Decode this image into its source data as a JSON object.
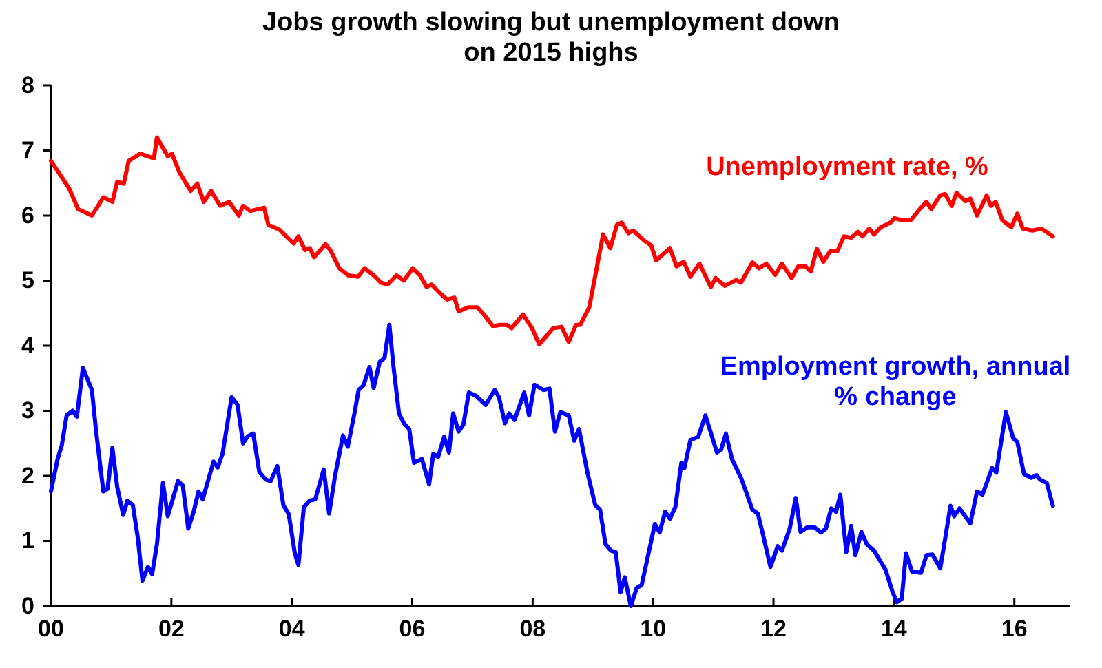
{
  "chart_data": {
    "type": "line",
    "title": "Jobs growth slowing but unemployment down on 2015 highs",
    "xlim": [
      2000,
      2016.93
    ],
    "xticks": [
      {
        "value": 2000,
        "label": "00"
      },
      {
        "value": 2002,
        "label": "02"
      },
      {
        "value": 2004,
        "label": "04"
      },
      {
        "value": 2006,
        "label": "06"
      },
      {
        "value": 2008,
        "label": "08"
      },
      {
        "value": 2010,
        "label": "10"
      },
      {
        "value": 2012,
        "label": "12"
      },
      {
        "value": 2014,
        "label": "14"
      },
      {
        "value": 2016,
        "label": "16"
      }
    ],
    "ylim": [
      0,
      8
    ],
    "yticks": [
      0,
      1,
      2,
      3,
      4,
      5,
      6,
      7,
      8
    ],
    "grid": false,
    "legend": false,
    "marker": "none",
    "line_style": "solid",
    "series": [
      {
        "name": "Unemployment rate, %",
        "color": "#ff0000",
        "x": [
          2000.0,
          2000.3,
          2000.45,
          2000.68,
          2000.87,
          2001.02,
          2001.1,
          2001.21,
          2001.29,
          2001.48,
          2001.71,
          2001.76,
          2001.94,
          2002.01,
          2002.13,
          2002.32,
          2002.43,
          2002.54,
          2002.66,
          2002.81,
          2002.96,
          2003.12,
          2003.19,
          2003.31,
          2003.54,
          2003.61,
          2003.8,
          2004.03,
          2004.11,
          2004.22,
          2004.3,
          2004.37,
          2004.56,
          2004.64,
          2004.79,
          2004.94,
          2005.1,
          2005.21,
          2005.36,
          2005.48,
          2005.59,
          2005.74,
          2005.86,
          2006.01,
          2006.13,
          2006.24,
          2006.32,
          2006.47,
          2006.58,
          2006.7,
          2006.77,
          2006.93,
          2007.08,
          2007.19,
          2007.34,
          2007.46,
          2007.57,
          2007.65,
          2007.84,
          2007.99,
          2008.11,
          2008.34,
          2008.48,
          2008.6,
          2008.72,
          2008.79,
          2008.94,
          2009.17,
          2009.29,
          2009.4,
          2009.48,
          2009.59,
          2009.67,
          2009.86,
          2009.97,
          2010.05,
          2010.28,
          2010.39,
          2010.51,
          2010.62,
          2010.77,
          2010.96,
          2011.04,
          2011.19,
          2011.38,
          2011.46,
          2011.65,
          2011.76,
          2011.88,
          2012.03,
          2012.14,
          2012.3,
          2012.41,
          2012.53,
          2012.62,
          2012.72,
          2012.83,
          2012.94,
          2013.06,
          2013.17,
          2013.29,
          2013.4,
          2013.48,
          2013.59,
          2013.67,
          2013.78,
          2013.94,
          2014.01,
          2014.13,
          2014.28,
          2014.43,
          2014.54,
          2014.62,
          2014.77,
          2014.85,
          2014.96,
          2015.04,
          2015.19,
          2015.27,
          2015.38,
          2015.54,
          2015.61,
          2015.69,
          2015.8,
          2015.95,
          2016.05,
          2016.14,
          2016.3,
          2016.45,
          2016.64
        ],
        "values": [
          6.84,
          6.42,
          6.1,
          6.0,
          6.28,
          6.21,
          6.52,
          6.49,
          6.84,
          6.95,
          6.88,
          7.2,
          6.91,
          6.95,
          6.67,
          6.38,
          6.49,
          6.21,
          6.38,
          6.15,
          6.21,
          6.0,
          6.15,
          6.07,
          6.12,
          5.86,
          5.78,
          5.57,
          5.68,
          5.47,
          5.5,
          5.36,
          5.56,
          5.47,
          5.19,
          5.08,
          5.06,
          5.19,
          5.08,
          4.97,
          4.94,
          5.08,
          5.0,
          5.19,
          5.08,
          4.9,
          4.94,
          4.8,
          4.71,
          4.74,
          4.53,
          4.59,
          4.59,
          4.48,
          4.3,
          4.32,
          4.32,
          4.27,
          4.48,
          4.27,
          4.02,
          4.27,
          4.29,
          4.06,
          4.32,
          4.32,
          4.59,
          5.71,
          5.5,
          5.86,
          5.89,
          5.73,
          5.77,
          5.61,
          5.54,
          5.31,
          5.5,
          5.22,
          5.29,
          5.06,
          5.26,
          4.9,
          5.04,
          4.92,
          5.01,
          4.97,
          5.28,
          5.19,
          5.26,
          5.09,
          5.26,
          5.04,
          5.22,
          5.22,
          5.14,
          5.49,
          5.29,
          5.45,
          5.45,
          5.68,
          5.66,
          5.75,
          5.68,
          5.8,
          5.71,
          5.82,
          5.89,
          5.96,
          5.93,
          5.93,
          6.1,
          6.21,
          6.1,
          6.31,
          6.33,
          6.15,
          6.35,
          6.22,
          6.26,
          6.0,
          6.31,
          6.15,
          6.21,
          5.93,
          5.82,
          6.03,
          5.8,
          5.77,
          5.8,
          5.68
        ]
      },
      {
        "name": "Employment growth, annual % change",
        "color": "#0000ff",
        "x": [
          2000.0,
          2000.11,
          2000.18,
          2000.26,
          2000.36,
          2000.43,
          2000.53,
          2000.68,
          2000.75,
          2000.87,
          2000.94,
          2001.02,
          2001.1,
          2001.2,
          2001.27,
          2001.36,
          2001.44,
          2001.52,
          2001.61,
          2001.68,
          2001.76,
          2001.86,
          2001.94,
          2002.11,
          2002.19,
          2002.28,
          2002.37,
          2002.45,
          2002.52,
          2002.7,
          2002.77,
          2002.85,
          2003.0,
          2003.1,
          2003.19,
          2003.27,
          2003.36,
          2003.46,
          2003.57,
          2003.65,
          2003.76,
          2003.86,
          2003.95,
          2004.05,
          2004.11,
          2004.2,
          2004.3,
          2004.39,
          2004.53,
          2004.62,
          2004.72,
          2004.85,
          2004.93,
          2005.04,
          2005.11,
          2005.19,
          2005.29,
          2005.36,
          2005.46,
          2005.54,
          2005.62,
          2005.69,
          2005.78,
          2005.86,
          2005.95,
          2006.03,
          2006.16,
          2006.28,
          2006.35,
          2006.43,
          2006.53,
          2006.61,
          2006.68,
          2006.77,
          2006.85,
          2006.94,
          2007.06,
          2007.22,
          2007.37,
          2007.44,
          2007.54,
          2007.61,
          2007.7,
          2007.86,
          2007.94,
          2008.03,
          2008.18,
          2008.28,
          2008.37,
          2008.46,
          2008.6,
          2008.69,
          2008.77,
          2008.91,
          2009.04,
          2009.12,
          2009.21,
          2009.3,
          2009.38,
          2009.46,
          2009.53,
          2009.63,
          2009.73,
          2009.81,
          2010.03,
          2010.11,
          2010.2,
          2010.28,
          2010.37,
          2010.47,
          2010.52,
          2010.62,
          2010.75,
          2010.87,
          2011.06,
          2011.13,
          2011.21,
          2011.31,
          2011.46,
          2011.57,
          2011.65,
          2011.74,
          2011.82,
          2011.95,
          2012.07,
          2012.14,
          2012.27,
          2012.37,
          2012.45,
          2012.56,
          2012.68,
          2012.79,
          2012.87,
          2012.96,
          2013.04,
          2013.11,
          2013.21,
          2013.29,
          2013.36,
          2013.46,
          2013.55,
          2013.67,
          2013.86,
          2013.98,
          2014.05,
          2014.13,
          2014.2,
          2014.3,
          2014.45,
          2014.54,
          2014.64,
          2014.77,
          2014.94,
          2015.0,
          2015.09,
          2015.27,
          2015.38,
          2015.47,
          2015.63,
          2015.7,
          2015.86,
          2015.98,
          2016.05,
          2016.16,
          2016.28,
          2016.37,
          2016.43,
          2016.54,
          2016.64
        ],
        "values": [
          1.76,
          2.26,
          2.47,
          2.93,
          3.0,
          2.91,
          3.66,
          3.32,
          2.68,
          1.76,
          1.8,
          2.43,
          1.83,
          1.4,
          1.62,
          1.55,
          1.06,
          0.39,
          0.6,
          0.49,
          0.95,
          1.89,
          1.38,
          1.92,
          1.85,
          1.19,
          1.45,
          1.76,
          1.64,
          2.22,
          2.13,
          2.34,
          3.21,
          3.09,
          2.5,
          2.61,
          2.65,
          2.06,
          1.94,
          1.92,
          2.15,
          1.55,
          1.41,
          0.81,
          0.63,
          1.52,
          1.62,
          1.64,
          2.1,
          1.42,
          2.01,
          2.62,
          2.45,
          2.96,
          3.32,
          3.39,
          3.67,
          3.35,
          3.75,
          3.81,
          4.32,
          3.67,
          2.96,
          2.81,
          2.72,
          2.2,
          2.26,
          1.87,
          2.34,
          2.29,
          2.6,
          2.36,
          2.96,
          2.68,
          2.79,
          3.28,
          3.23,
          3.09,
          3.32,
          3.21,
          2.81,
          2.96,
          2.86,
          3.28,
          2.93,
          3.4,
          3.32,
          3.34,
          2.68,
          2.98,
          2.93,
          2.54,
          2.72,
          2.05,
          1.55,
          1.48,
          0.95,
          0.85,
          0.83,
          0.21,
          0.44,
          0.0,
          0.28,
          0.32,
          1.26,
          1.13,
          1.45,
          1.34,
          1.52,
          2.2,
          2.12,
          2.55,
          2.6,
          2.93,
          2.36,
          2.4,
          2.65,
          2.26,
          1.97,
          1.69,
          1.48,
          1.42,
          1.12,
          0.6,
          0.92,
          0.85,
          1.19,
          1.66,
          1.14,
          1.21,
          1.21,
          1.13,
          1.19,
          1.5,
          1.45,
          1.71,
          0.83,
          1.23,
          0.78,
          1.14,
          0.95,
          0.85,
          0.56,
          0.21,
          0.06,
          0.11,
          0.81,
          0.53,
          0.51,
          0.78,
          0.79,
          0.58,
          1.54,
          1.38,
          1.5,
          1.27,
          1.76,
          1.71,
          2.12,
          2.05,
          2.98,
          2.58,
          2.52,
          2.03,
          1.97,
          2.01,
          1.94,
          1.89,
          1.54
        ]
      }
    ]
  }
}
